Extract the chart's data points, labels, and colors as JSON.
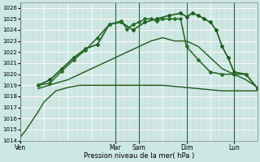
{
  "title": "",
  "xlabel": "Pression niveau de la mer( hPa )",
  "ylabel": "",
  "bg_color": "#cce8e4",
  "grid_color_minor": "#e8c8c8",
  "grid_color_major": "#ffffff",
  "ylim": [
    1014,
    1026.5
  ],
  "ytick_vals": [
    1014,
    1015,
    1016,
    1017,
    1018,
    1019,
    1020,
    1021,
    1022,
    1023,
    1024,
    1025,
    1026
  ],
  "day_labels": [
    "Ven",
    "Mar",
    "Sam",
    "Dim",
    "Lun"
  ],
  "day_x": [
    0,
    16,
    20,
    28,
    36
  ],
  "xlim": [
    0,
    40
  ],
  "series": [
    {
      "x": [
        0,
        1,
        2,
        3,
        4,
        5,
        6,
        8,
        10,
        12,
        14,
        16,
        18,
        20,
        22,
        24,
        26,
        28,
        30,
        32,
        34,
        36,
        38,
        40
      ],
      "y": [
        1014.3,
        1015.0,
        1015.8,
        1016.6,
        1017.5,
        1018.0,
        1018.5,
        1018.8,
        1019.0,
        1019.0,
        1019.0,
        1019.0,
        1019.0,
        1019.0,
        1019.0,
        1019.0,
        1018.9,
        1018.8,
        1018.7,
        1018.6,
        1018.5,
        1018.5,
        1018.5,
        1018.5
      ],
      "color": "#1a5c1a",
      "lw": 1.0,
      "marker": null
    },
    {
      "x": [
        3,
        6,
        8,
        10,
        12,
        14,
        16,
        18,
        20,
        22,
        24,
        26,
        28,
        30,
        32,
        34,
        36,
        38,
        40
      ],
      "y": [
        1018.7,
        1019.2,
        1019.5,
        1020.0,
        1020.5,
        1021.0,
        1021.5,
        1022.0,
        1022.5,
        1023.0,
        1023.3,
        1023.0,
        1023.0,
        1022.5,
        1021.5,
        1020.5,
        1020.0,
        1019.5,
        1018.8
      ],
      "color": "#1a5c1a",
      "lw": 1.0,
      "marker": null
    },
    {
      "x": [
        3,
        5,
        7,
        9,
        11,
        13,
        15,
        17,
        19,
        21,
        23,
        25,
        27,
        28,
        29,
        30,
        31,
        32,
        33,
        34,
        35,
        36,
        38,
        40
      ],
      "y": [
        1019.0,
        1019.5,
        1020.5,
        1021.5,
        1022.3,
        1022.7,
        1024.5,
        1024.7,
        1024.0,
        1024.7,
        1025.0,
        1025.3,
        1025.5,
        1025.2,
        1025.5,
        1025.3,
        1025.0,
        1024.7,
        1024.0,
        1022.5,
        1021.5,
        1020.2,
        1020.0,
        1018.7
      ],
      "color": "#1a5c1a",
      "lw": 1.2,
      "marker": "D",
      "ms": 2.0
    },
    {
      "x": [
        3,
        5,
        7,
        9,
        11,
        13,
        15,
        17,
        18,
        19,
        20,
        21,
        22,
        23,
        24,
        25,
        26,
        27,
        28,
        30,
        32,
        34,
        36,
        38,
        40
      ],
      "y": [
        1019.0,
        1019.2,
        1020.3,
        1021.3,
        1022.2,
        1023.3,
        1024.5,
        1024.8,
        1024.1,
        1024.5,
        1024.7,
        1025.0,
        1025.0,
        1024.8,
        1025.0,
        1025.0,
        1025.0,
        1025.0,
        1022.5,
        1021.3,
        1020.2,
        1020.0,
        1020.0,
        1020.0,
        1018.7
      ],
      "color": "#2a6e2a",
      "lw": 1.2,
      "marker": "D",
      "ms": 2.0
    }
  ]
}
